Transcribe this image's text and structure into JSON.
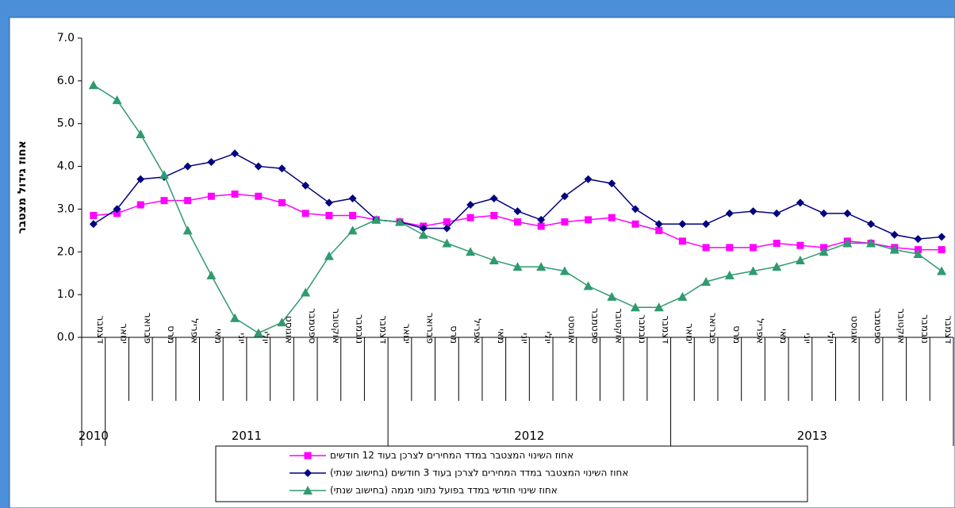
{
  "chart_data": {
    "type": "line",
    "y_label": "אחוז גידול מצטבר",
    "categories": [
      "דצמבר",
      "ינואר",
      "פברואר",
      "מרס",
      "אפריל",
      "מאי",
      "יוני",
      "יולי",
      "אוגוסט",
      "ספטמבר",
      "אוקטובר",
      "נובמבר",
      "דצמבר",
      "ינואר",
      "פברואר",
      "מרס",
      "אפריל",
      "מאי",
      "יוני",
      "יולי",
      "אוגוסט",
      "ספטמבר",
      "אוקטובר",
      "נובמבר",
      "דצמבר",
      "ינואר",
      "פברואר",
      "מרס",
      "אפריל",
      "מאי",
      "יוני",
      "יולי",
      "אוגוסט",
      "ספטמבר",
      "אוקטובר",
      "נובמבר",
      "דצמבר"
    ],
    "years": [
      "2010",
      "2011",
      "2012",
      "2013"
    ],
    "ylim": [
      0,
      7
    ],
    "yticks": [
      {
        "value": 0,
        "label": "0.0"
      },
      {
        "value": 1,
        "label": "1.0"
      },
      {
        "value": 2,
        "label": "2.0"
      },
      {
        "value": 3,
        "label": "3.0"
      },
      {
        "value": 4,
        "label": "4.0"
      },
      {
        "value": 5,
        "label": "5.0"
      },
      {
        "value": 6,
        "label": "6.0"
      },
      {
        "value": 7,
        "label": "7.0"
      }
    ],
    "series": [
      {
        "name": "אחוז השינוי המצטבר במדד המחירים לצרכן בעוד 12 חודשים",
        "color": "#ff00ff",
        "marker": "square",
        "values": [
          2.85,
          2.9,
          3.1,
          3.2,
          3.2,
          3.3,
          3.35,
          3.3,
          3.15,
          2.9,
          2.85,
          2.85,
          2.75,
          2.7,
          2.6,
          2.7,
          2.8,
          2.85,
          2.7,
          2.6,
          2.7,
          2.75,
          2.8,
          2.65,
          2.5,
          2.25,
          2.1,
          2.1,
          2.1,
          2.2,
          2.15,
          2.1,
          2.25,
          2.2,
          2.1,
          2.05,
          2.05
        ]
      },
      {
        "name": "אחוז השינוי המצטבר במדד המחירים לצרכן בעוד 3 חודשים (בחישוב שנתי)",
        "color": "#000080",
        "marker": "diamond",
        "values": [
          2.65,
          3.0,
          3.7,
          3.75,
          4.0,
          4.1,
          4.3,
          4.0,
          3.95,
          3.55,
          3.15,
          3.25,
          2.75,
          2.7,
          2.55,
          2.55,
          3.1,
          3.25,
          2.95,
          2.75,
          3.3,
          3.7,
          3.6,
          3.0,
          2.65,
          2.65,
          2.65,
          2.9,
          2.95,
          2.9,
          3.15,
          2.9,
          2.9,
          2.65,
          2.4,
          2.3,
          2.35
        ]
      },
      {
        "name": "אחוז שינוי חודשי במדד בפועל נתוני מגמה (בחישוב שנתי)",
        "color": "#2f9a6e",
        "marker": "triangle",
        "values": [
          5.9,
          5.55,
          4.75,
          3.8,
          2.5,
          1.45,
          0.45,
          0.1,
          0.35,
          1.05,
          1.9,
          2.5,
          2.75,
          2.7,
          2.4,
          2.2,
          2.0,
          1.8,
          1.65,
          1.65,
          1.55,
          1.2,
          0.95,
          0.7,
          0.7,
          0.95,
          1.3,
          1.45,
          1.55,
          1.65,
          1.8,
          2.0,
          2.2,
          2.2,
          2.05,
          1.95,
          1.55
        ]
      }
    ]
  }
}
